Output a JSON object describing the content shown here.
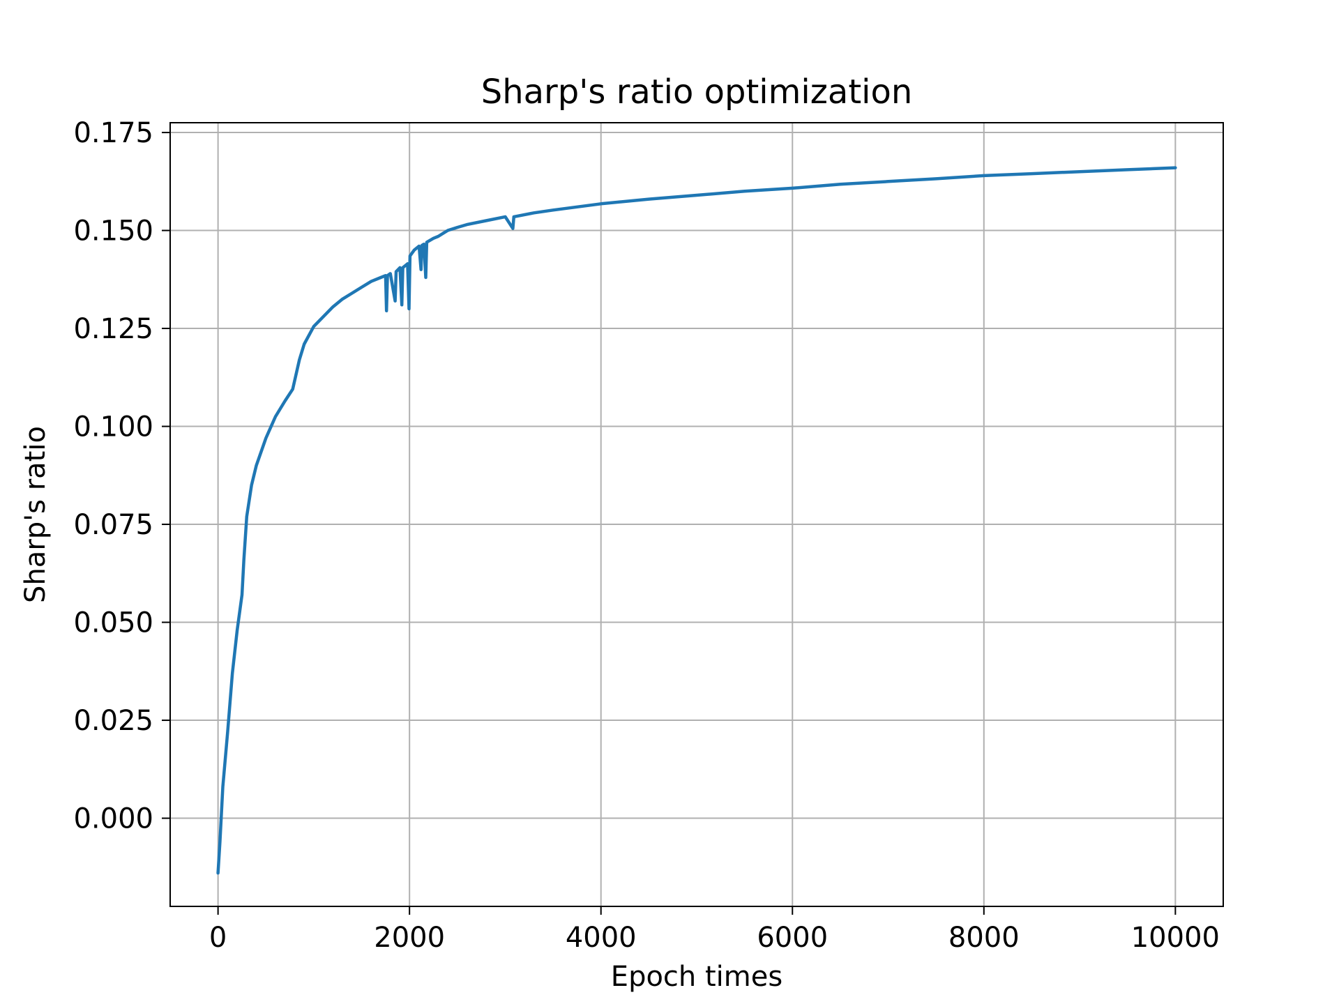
{
  "chart_data": {
    "type": "line",
    "title": "Sharp's ratio optimization",
    "xlabel": "Epoch times",
    "ylabel": "Sharp's ratio",
    "xlim": [
      -500,
      10500
    ],
    "ylim": [
      -0.0225,
      0.1775
    ],
    "xticks": [
      0,
      2000,
      4000,
      6000,
      8000,
      10000
    ],
    "xtick_labels": [
      "0",
      "2000",
      "4000",
      "6000",
      "8000",
      "10000"
    ],
    "yticks": [
      0.0,
      0.025,
      0.05,
      0.075,
      0.1,
      0.125,
      0.15,
      0.175
    ],
    "ytick_labels": [
      "0.000",
      "0.025",
      "0.050",
      "0.075",
      "0.100",
      "0.125",
      "0.150",
      "0.175"
    ],
    "grid": true,
    "legend": "none",
    "color": "#1f77b4",
    "series": [
      {
        "points": [
          [
            0,
            -0.014
          ],
          [
            20,
            -0.006
          ],
          [
            50,
            0.008
          ],
          [
            100,
            0.022
          ],
          [
            150,
            0.037
          ],
          [
            200,
            0.048
          ],
          [
            250,
            0.057
          ],
          [
            270,
            0.066
          ],
          [
            300,
            0.077
          ],
          [
            350,
            0.085
          ],
          [
            400,
            0.09
          ],
          [
            500,
            0.097
          ],
          [
            600,
            0.1025
          ],
          [
            700,
            0.1065
          ],
          [
            780,
            0.1095
          ],
          [
            850,
            0.117
          ],
          [
            900,
            0.121
          ],
          [
            1000,
            0.1255
          ],
          [
            1100,
            0.128
          ],
          [
            1200,
            0.1305
          ],
          [
            1300,
            0.1325
          ],
          [
            1400,
            0.134
          ],
          [
            1500,
            0.1355
          ],
          [
            1600,
            0.137
          ],
          [
            1700,
            0.138
          ],
          [
            1750,
            0.1385
          ],
          [
            1760,
            0.1295
          ],
          [
            1770,
            0.1385
          ],
          [
            1800,
            0.139
          ],
          [
            1850,
            0.132
          ],
          [
            1860,
            0.1395
          ],
          [
            1900,
            0.1405
          ],
          [
            1920,
            0.131
          ],
          [
            1930,
            0.1405
          ],
          [
            1980,
            0.1415
          ],
          [
            1995,
            0.13
          ],
          [
            2005,
            0.1435
          ],
          [
            2050,
            0.145
          ],
          [
            2100,
            0.146
          ],
          [
            2120,
            0.14
          ],
          [
            2130,
            0.1462
          ],
          [
            2150,
            0.1465
          ],
          [
            2170,
            0.138
          ],
          [
            2180,
            0.147
          ],
          [
            2250,
            0.148
          ],
          [
            2300,
            0.1485
          ],
          [
            2400,
            0.15
          ],
          [
            2500,
            0.1508
          ],
          [
            2600,
            0.1515
          ],
          [
            2800,
            0.1525
          ],
          [
            3000,
            0.1535
          ],
          [
            3080,
            0.1505
          ],
          [
            3090,
            0.1535
          ],
          [
            3300,
            0.1545
          ],
          [
            3500,
            0.1552
          ],
          [
            4000,
            0.1568
          ],
          [
            4500,
            0.158
          ],
          [
            5000,
            0.159
          ],
          [
            5500,
            0.16
          ],
          [
            6000,
            0.1608
          ],
          [
            6500,
            0.1618
          ],
          [
            7000,
            0.1625
          ],
          [
            7500,
            0.1632
          ],
          [
            8000,
            0.164
          ],
          [
            8500,
            0.1645
          ],
          [
            9000,
            0.165
          ],
          [
            9500,
            0.1655
          ],
          [
            10000,
            0.166
          ]
        ]
      }
    ]
  }
}
